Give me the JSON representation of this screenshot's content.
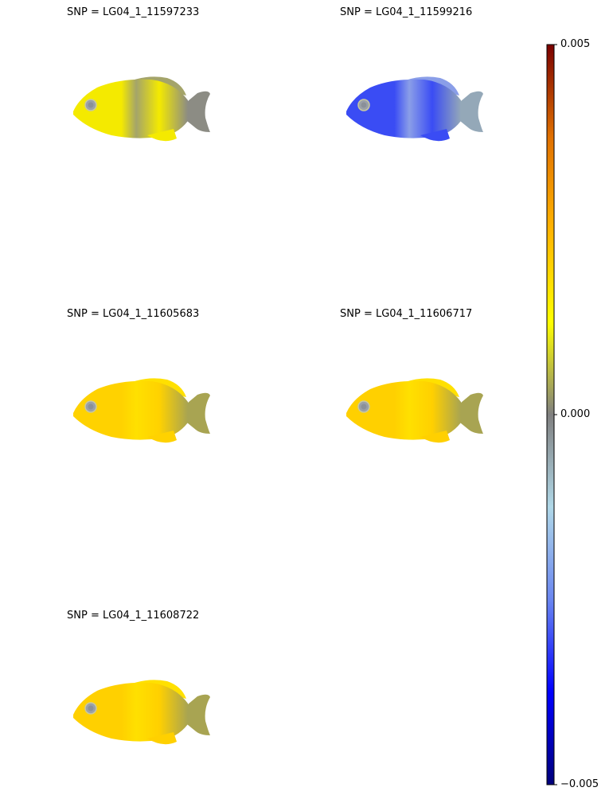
{
  "chart_data": {
    "type": "heatmap",
    "title": "",
    "colorbar": {
      "min": -0.005,
      "max": 0.005,
      "ticks": [
        {
          "value": 0.005,
          "label": "0.005"
        },
        {
          "value": 0.0,
          "label": "0.000"
        },
        {
          "value": -0.005,
          "label": "−0.005"
        }
      ],
      "colormap": [
        "#00007a",
        "#0000ff",
        "#6a86f0",
        "#b0d8e8",
        "#808080",
        "#ffff00",
        "#ffb400",
        "#e07000",
        "#7a0000"
      ]
    },
    "panels": [
      {
        "title": "SNP = LG04_1_11597233",
        "body_color": "#f4ea00",
        "stripe_color": "#a4a46a",
        "tail_color": "#8c8c84",
        "mean_value": 0.0013
      },
      {
        "title": "SNP = LG04_1_11599216",
        "body_color": "#3a4cf4",
        "stripe_color": "#8a9ee8",
        "tail_color": "#94a8b8",
        "mean_value": -0.0028
      },
      {
        "title": "SNP = LG04_1_11605683",
        "body_color": "#ffd200",
        "stripe_color": "#ffe000",
        "tail_color": "#a8a452",
        "mean_value": 0.0022
      },
      {
        "title": "SNP = LG04_1_11606717",
        "body_color": "#ffd000",
        "stripe_color": "#ffe000",
        "tail_color": "#a8a452",
        "mean_value": 0.0022
      },
      {
        "title": "SNP = LG04_1_11608722",
        "body_color": "#ffd000",
        "stripe_color": "#ffe000",
        "tail_color": "#a8a452",
        "mean_value": 0.0022
      }
    ]
  }
}
